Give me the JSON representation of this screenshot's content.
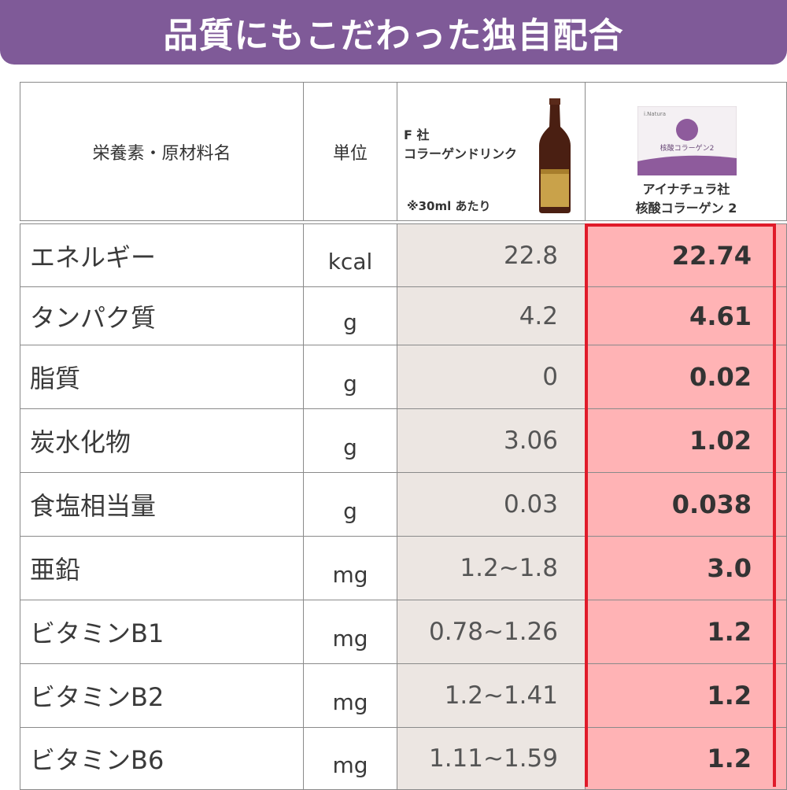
{
  "banner": {
    "title": "品質にもこだわった独自配合"
  },
  "header": {
    "name_col": "栄養素・原材料名",
    "unit_col": "単位",
    "competitor": {
      "company": "F 社",
      "product": "コラーゲンドリンク",
      "note": "※30ml あたり"
    },
    "ours": {
      "company": "アイナチュラ社",
      "product": "核酸コラーゲン 2",
      "box_label": "核酸コラーゲン2",
      "box_brand": "i.Natura"
    }
  },
  "rows": [
    {
      "name": "エネルギー",
      "unit": "kcal",
      "competitor": "22.8",
      "ours": "22.74"
    },
    {
      "name": "タンパク質",
      "unit": "g",
      "competitor": "4.2",
      "ours": "4.61"
    },
    {
      "name": "脂質",
      "unit": "g",
      "competitor": "0",
      "ours": "0.02"
    },
    {
      "name": "炭水化物",
      "unit": "g",
      "competitor": "3.06",
      "ours": "1.02"
    },
    {
      "name": "食塩相当量",
      "unit": "g",
      "competitor": "0.03",
      "ours": "0.038"
    },
    {
      "name": "亜鉛",
      "unit": "mg",
      "competitor": "1.2~1.8",
      "ours": "3.0"
    },
    {
      "name": "ビタミンB1",
      "unit": "mg",
      "competitor": "0.78~1.26",
      "ours": "1.2"
    },
    {
      "name": "ビタミンB2",
      "unit": "mg",
      "competitor": "1.2~1.41",
      "ours": "1.2"
    },
    {
      "name": "ビタミンB6",
      "unit": "mg",
      "competitor": "1.11~1.59",
      "ours": "1.2"
    }
  ],
  "colors": {
    "banner": "#7f5a98",
    "competitor_bg": "#ece6e2",
    "ours_bg": "#ffb3b5",
    "highlight": "#e01b2a"
  }
}
